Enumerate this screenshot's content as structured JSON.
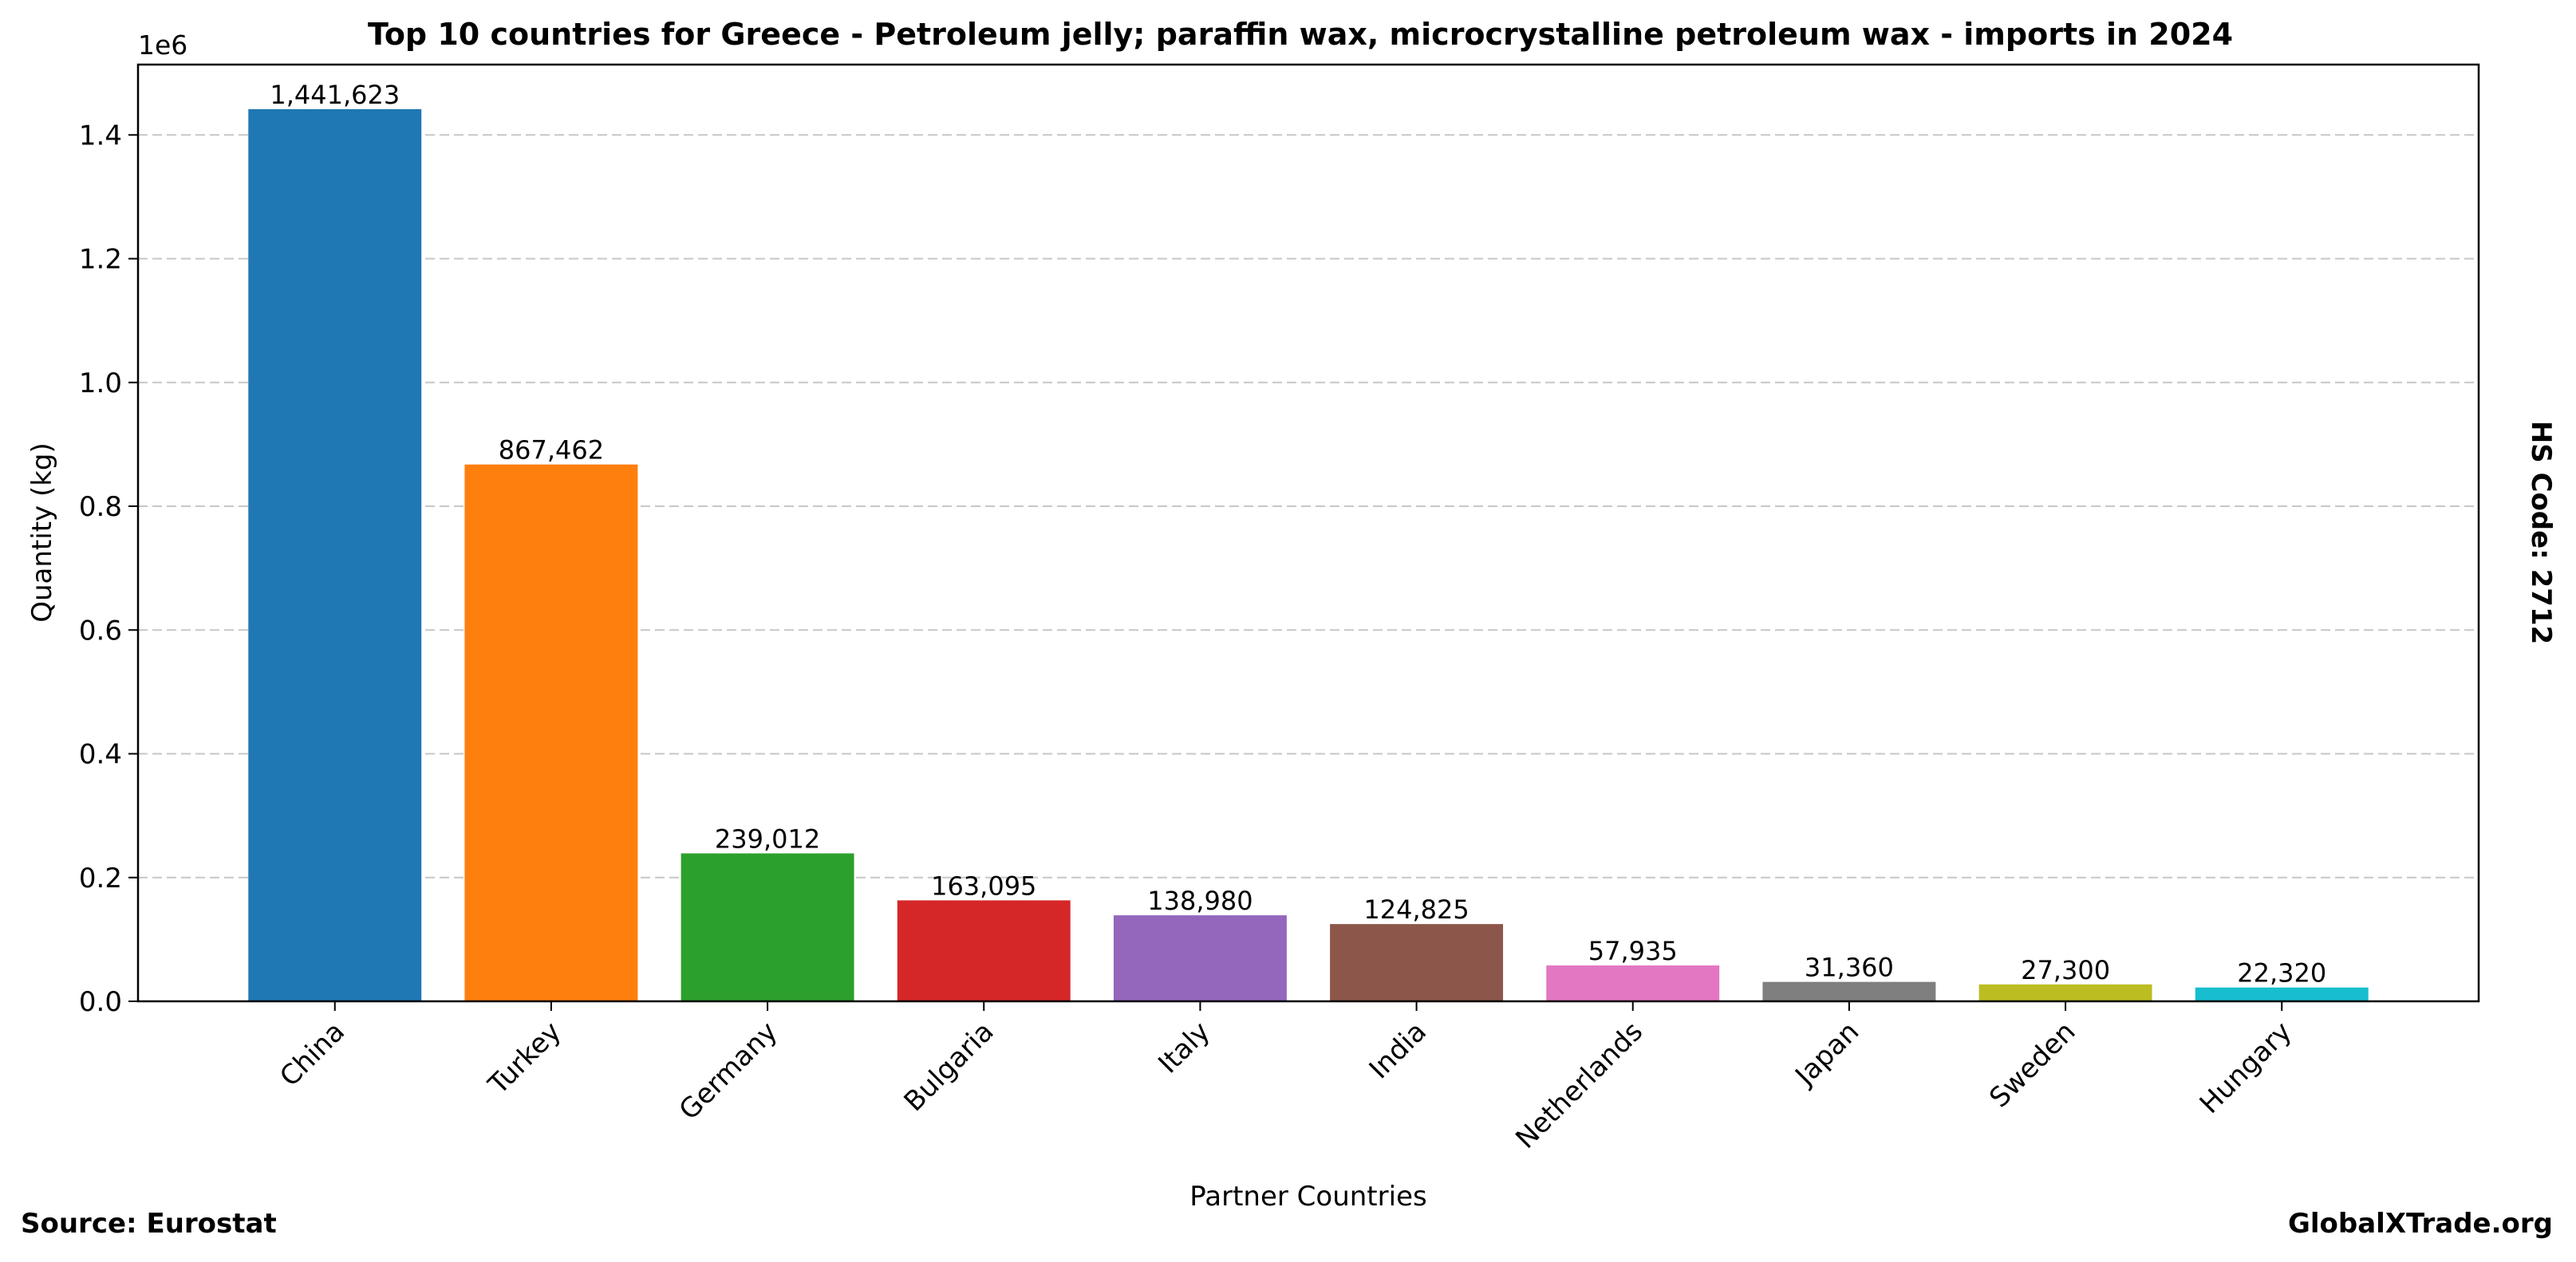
{
  "chart_data": {
    "type": "bar",
    "title": "Top 10 countries for Greece - Petroleum jelly; paraffin wax, microcrystalline petroleum wax - imports in 2024",
    "xlabel": "Partner Countries",
    "ylabel": "Quantity (kg)",
    "y_multiplier_label": "1e6",
    "side_label": "HS Code: 2712",
    "ylim": [
      0,
      1513704
    ],
    "yticks": [
      0,
      200000,
      400000,
      600000,
      800000,
      1000000,
      1200000,
      1400000
    ],
    "ytick_labels": [
      "0.0",
      "0.2",
      "0.4",
      "0.6",
      "0.8",
      "1.0",
      "1.2",
      "1.4"
    ],
    "grid": "y-dashed",
    "categories": [
      "China",
      "Turkey",
      "Germany",
      "Bulgaria",
      "Italy",
      "India",
      "Netherlands",
      "Japan",
      "Sweden",
      "Hungary"
    ],
    "values": [
      1441623,
      867462,
      239012,
      163095,
      138980,
      124825,
      57935,
      31360,
      27300,
      22320
    ],
    "value_labels": [
      "1,441,623",
      "867,462",
      "239,012",
      "163,095",
      "138,980",
      "124,825",
      "57,935",
      "31,360",
      "27,300",
      "22,320"
    ],
    "colors": [
      "#1f77b4",
      "#ff7f0e",
      "#2ca02c",
      "#d62728",
      "#9467bd",
      "#8c564b",
      "#e377c2",
      "#7f7f7f",
      "#bcbd22",
      "#17becf"
    ]
  },
  "footer": {
    "source": "Source: Eurostat",
    "brand": "GlobalXTrade.org"
  }
}
